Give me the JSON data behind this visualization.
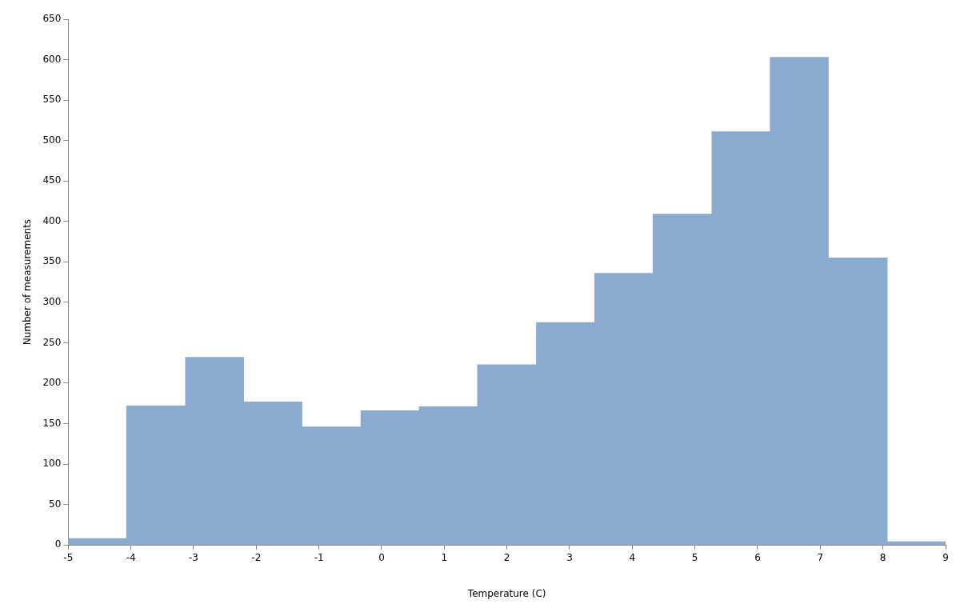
{
  "chart_data": {
    "type": "histogram",
    "xlabel": "Temperature (C)",
    "ylabel": "Number of measurements",
    "bins": [
      -5,
      -4.07,
      -3.13,
      -2.2,
      -1.27,
      -0.33,
      0.6,
      1.53,
      2.47,
      3.4,
      4.33,
      5.27,
      6.2,
      7.13,
      8.07,
      9
    ],
    "values": [
      8,
      172,
      232,
      177,
      146,
      166,
      171,
      223,
      275,
      336,
      409,
      511,
      603,
      355,
      4
    ],
    "color": "#8aabcf",
    "xlim": [
      -5,
      9
    ],
    "xticks": [
      -5,
      -4,
      -3,
      -2,
      -1,
      0,
      1,
      2,
      3,
      4,
      5,
      6,
      7,
      8,
      9
    ],
    "ylim": [
      0,
      650
    ],
    "yticks": [
      0,
      50,
      100,
      150,
      200,
      250,
      300,
      350,
      400,
      450,
      500,
      550,
      600,
      650
    ],
    "grid": false,
    "legend": false
  }
}
